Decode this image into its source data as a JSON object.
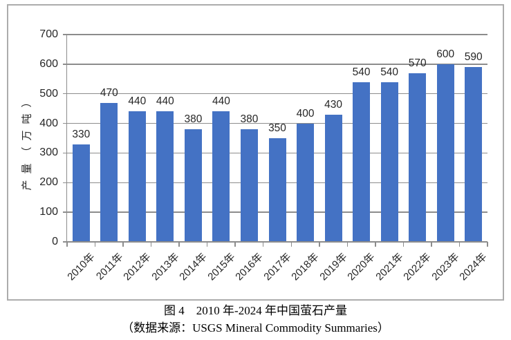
{
  "caption": {
    "title": "图 4　2010 年-2024 年中国萤石产量",
    "source": "（数据来源：USGS Mineral Commodity Summaries）"
  },
  "chart_data": {
    "type": "bar",
    "title": "图 4　2010 年-2024 年中国萤石产量",
    "subtitle": "（数据来源：USGS Mineral Commodity Summaries）",
    "categories": [
      "2010年",
      "2011年",
      "2012年",
      "2013年",
      "2014年",
      "2015年",
      "2016年",
      "2017年",
      "2018年",
      "2019年",
      "2020年",
      "2021年",
      "2022年",
      "2023年",
      "2024年"
    ],
    "values": [
      330,
      470,
      440,
      440,
      380,
      440,
      380,
      350,
      400,
      430,
      540,
      540,
      570,
      600,
      590
    ],
    "xlabel": "",
    "ylabel": "产量（万吨）",
    "ylim": [
      0,
      700
    ],
    "yticks": [
      0,
      100,
      200,
      300,
      400,
      500,
      600,
      700
    ],
    "grid": true,
    "legend": false,
    "data_labels": true,
    "x_label_rotation_deg": 45,
    "colors": {
      "bar": "#4472C4",
      "grid": "#8C8C8C",
      "axis": "#8C8C8C",
      "text": "#262626",
      "frame_border": "#ACACAC"
    }
  }
}
